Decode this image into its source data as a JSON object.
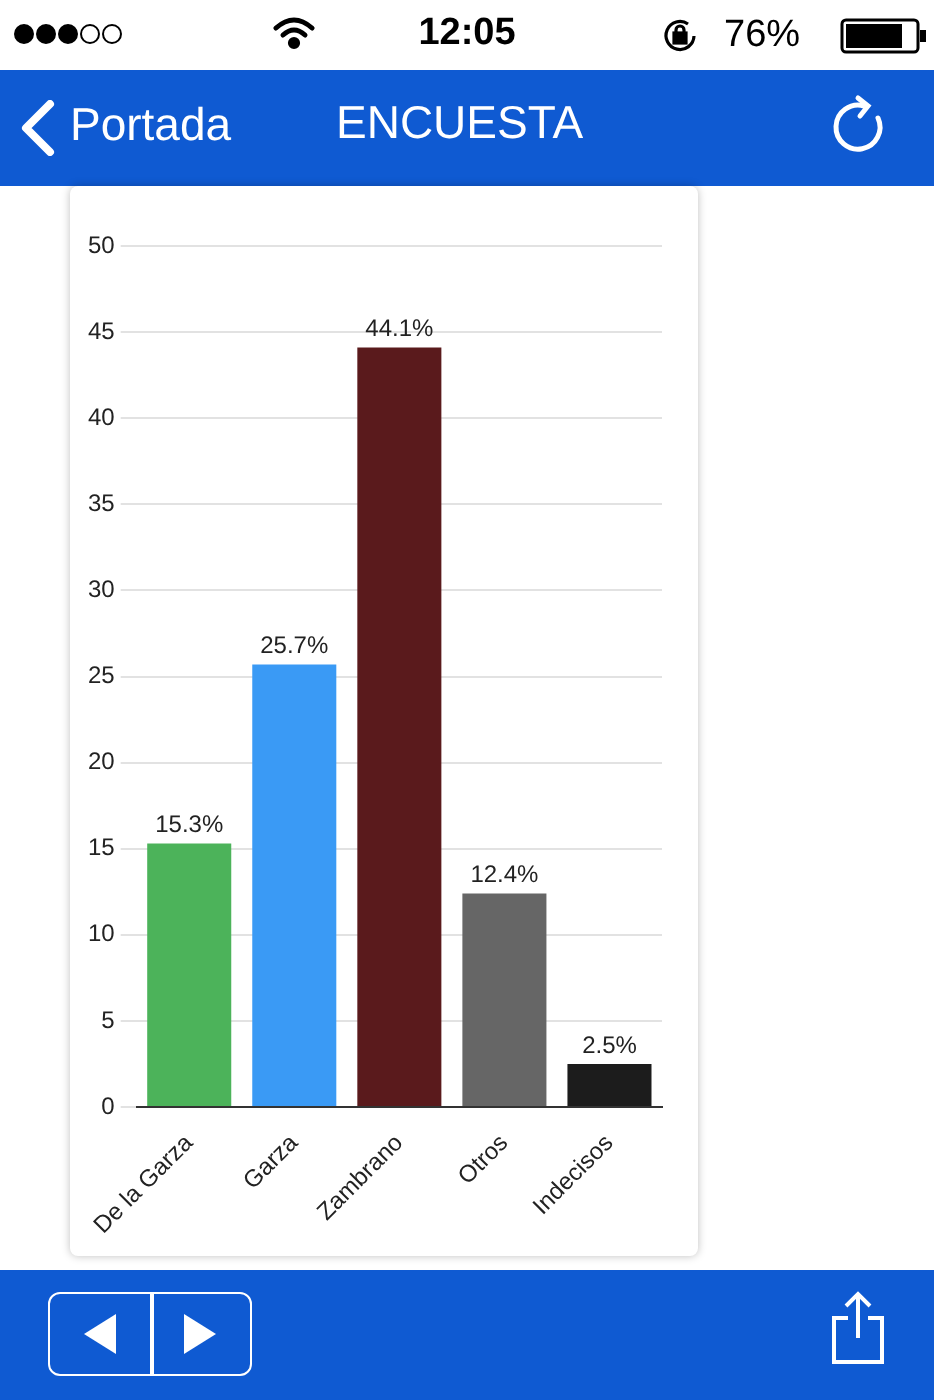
{
  "chart_data": {
    "type": "bar",
    "title": "ENCUESTA",
    "annotations": [
      "Portada",
      "12:05",
      "76%"
    ],
    "categories": [
      "De la Garza",
      "Garza",
      "Zambrano",
      "Otros",
      "Indecisos"
    ],
    "values": [
      15.3,
      25.7,
      44.1,
      12.4,
      2.5
    ],
    "colors": [
      "#4cb35a",
      "#3a9af5",
      "#5a1a1c",
      "#666666",
      "#1c1c1c"
    ],
    "value_labels": [
      "15.3%",
      "25.7%",
      "44.1%",
      "12.4%",
      "2.5%"
    ],
    "ylim": [
      0,
      50
    ],
    "yticks": [
      0,
      5,
      10,
      15,
      20,
      25,
      30,
      35,
      40,
      45,
      50
    ],
    "grid": "y",
    "legend": false
  }
}
